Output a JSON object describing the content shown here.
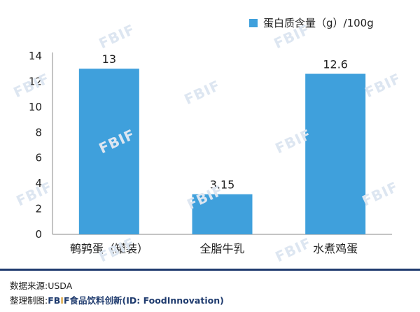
{
  "chart_data": {
    "type": "bar",
    "categories": [
      "鹌鹑蛋（罐装）",
      "全脂牛乳",
      "水煮鸡蛋"
    ],
    "series": [
      {
        "name": "蛋白质含量（g）/100g",
        "values": [
          13,
          3.15,
          12.6
        ],
        "labels": [
          "13",
          "3.15",
          "12.6"
        ]
      }
    ],
    "ylim": [
      0,
      14
    ],
    "yticks": [
      "0",
      "2",
      "4",
      "6",
      "8",
      "10",
      "12",
      "14"
    ],
    "legend_position": "top-right",
    "grid": false,
    "bar_color": "#3fa0dc"
  },
  "footer": {
    "source": "数据来源:USDA",
    "compiled_prefix": "整理制图:",
    "brand_fb": "FB",
    "brand_mid": "I",
    "brand_f": "F",
    "brand_suffix": "食品饮料创新(ID: FoodInnovation)"
  },
  "watermark_text": "FBIF"
}
